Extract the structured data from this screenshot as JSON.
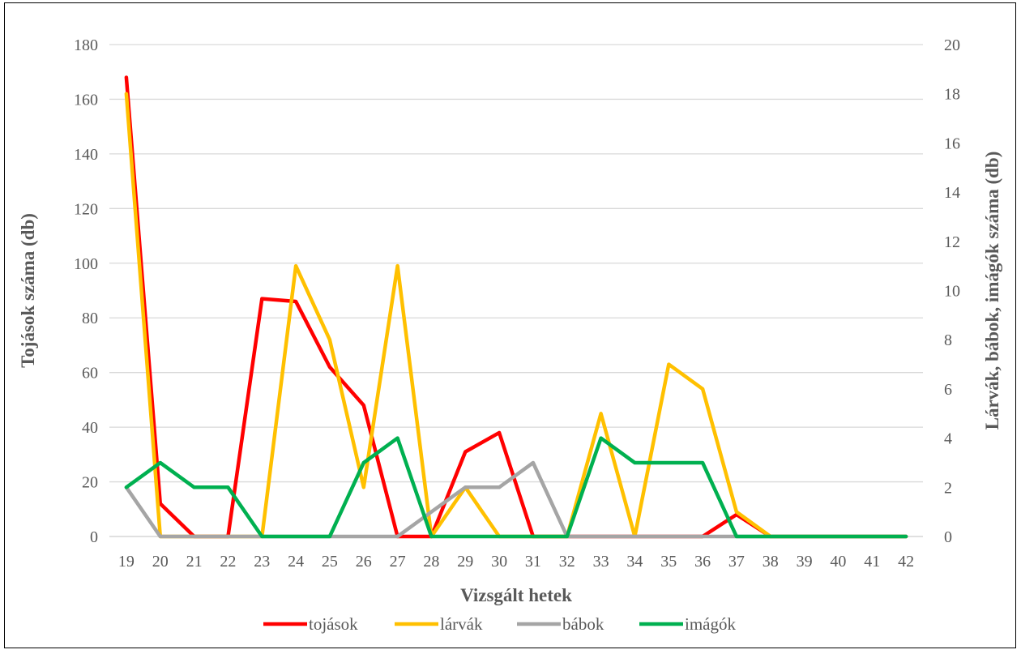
{
  "chart_data": {
    "type": "line",
    "xlabel": "Vizsgált hetek",
    "ylabel": "Tojások száma (db)",
    "y2label": "Lárvák, bábok, imágók száma (db)",
    "ylim": [
      0,
      180
    ],
    "y2lim": [
      0,
      20
    ],
    "yticks": [
      0,
      20,
      40,
      60,
      80,
      100,
      120,
      140,
      160,
      180
    ],
    "y2ticks": [
      0,
      2,
      4,
      6,
      8,
      10,
      12,
      14,
      16,
      18,
      20
    ],
    "grid": true,
    "legend_position": "bottom",
    "categories": [
      "19",
      "20",
      "21",
      "22",
      "23",
      "24",
      "25",
      "26",
      "27",
      "28",
      "29",
      "30",
      "31",
      "32",
      "33",
      "34",
      "35",
      "36",
      "37",
      "38",
      "39",
      "40",
      "41",
      "42"
    ],
    "series": [
      {
        "name": "tojások",
        "axis": "left",
        "color": "#ff0000",
        "values": [
          168,
          12,
          0,
          0,
          87,
          86,
          62,
          48,
          0,
          0,
          31,
          38,
          0,
          0,
          0,
          0,
          0,
          0,
          8,
          0,
          0,
          0,
          0,
          0
        ]
      },
      {
        "name": "lárvák",
        "axis": "right",
        "color": "#ffc000",
        "values": [
          18,
          0,
          0,
          0,
          0,
          11,
          8,
          2,
          11,
          0,
          2,
          0,
          0,
          0,
          5,
          0,
          7,
          6,
          1,
          0,
          0,
          0,
          0,
          0
        ]
      },
      {
        "name": "bábok",
        "axis": "right",
        "color": "#a5a5a5",
        "values": [
          2,
          0,
          0,
          0,
          0,
          0,
          0,
          0,
          0,
          1,
          2,
          2,
          3,
          0,
          0,
          0,
          0,
          0,
          0,
          0,
          0,
          0,
          0,
          0
        ]
      },
      {
        "name": "imágók",
        "axis": "right",
        "color": "#00b050",
        "values": [
          2,
          3,
          2,
          2,
          0,
          0,
          0,
          3,
          4,
          0,
          0,
          0,
          0,
          0,
          4,
          3,
          3,
          3,
          0,
          0,
          0,
          0,
          0,
          0
        ]
      }
    ]
  }
}
